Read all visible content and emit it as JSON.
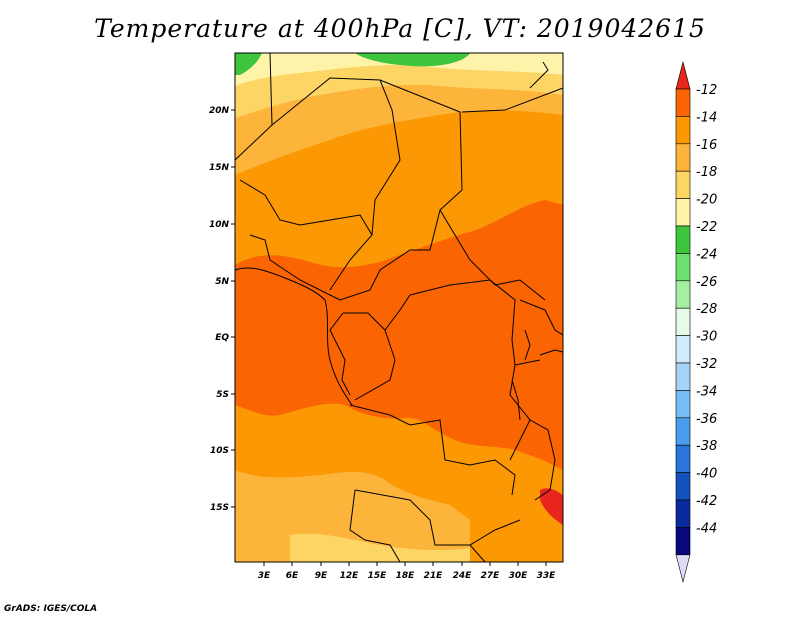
{
  "title": "Temperature at 400hPa [C], VT: 2019042615",
  "credit": "GrADS: IGES/COLA",
  "lat_labels": [
    "20N",
    "15N",
    "10N",
    "5N",
    "EQ",
    "5S",
    "10S",
    "15S"
  ],
  "lon_labels": [
    "3E",
    "6E",
    "9E",
    "12E",
    "15E",
    "18E",
    "21E",
    "24E",
    "27E",
    "30E",
    "33E"
  ],
  "colorbar": {
    "labels": [
      "-12",
      "-14",
      "-16",
      "-18",
      "-20",
      "-22",
      "-24",
      "-26",
      "-28",
      "-30",
      "-32",
      "-34",
      "-36",
      "-38",
      "-40",
      "-42",
      "-44"
    ],
    "colors": [
      "#e8261e",
      "#fa6402",
      "#fb9803",
      "#fcb43a",
      "#fdd565",
      "#fef3a8",
      "#3ec53e",
      "#6de06d",
      "#a3f0a3",
      "#e6fbe6",
      "#d3ecfb",
      "#a6d4f8",
      "#78bcf4",
      "#4a9cec",
      "#2a74dc",
      "#1450c0",
      "#0a2aa0",
      "#07087a",
      "#dcdcf8"
    ]
  }
}
